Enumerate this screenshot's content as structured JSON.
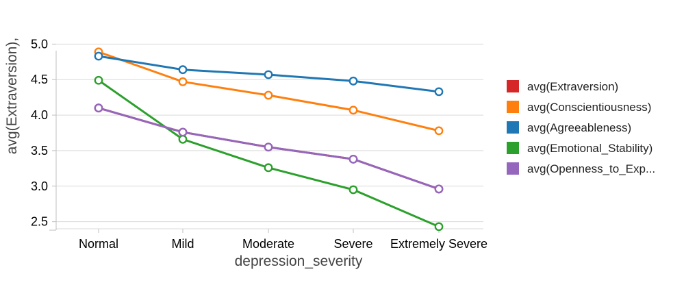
{
  "chart_data": {
    "type": "line",
    "xlabel": "depression_severity",
    "ylabel": "avg(Extraversion),",
    "categories": [
      "Normal",
      "Mild",
      "Moderate",
      "Severe",
      "Extremely Severe"
    ],
    "ylim": [
      2.4,
      5.1
    ],
    "yticks": [
      2.5,
      3.0,
      3.5,
      4.0,
      4.5,
      5.0
    ],
    "ytick_labels": [
      "2.5",
      "3.0",
      "3.5",
      "4.0",
      "4.5",
      "5.0"
    ],
    "grid": true,
    "legend_position": "right",
    "series": [
      {
        "name": "avg(Extraversion)",
        "color": "#d62728",
        "values": [
          4.1,
          3.76,
          3.55,
          3.38,
          2.96
        ]
      },
      {
        "name": "avg(Conscientiousness)",
        "color": "#ff7f0e",
        "values": [
          4.89,
          4.47,
          4.28,
          4.07,
          3.78
        ]
      },
      {
        "name": "avg(Agreeableness)",
        "color": "#1f77b4",
        "values": [
          4.83,
          4.64,
          4.57,
          4.48,
          4.33
        ]
      },
      {
        "name": "avg(Emotional_Stability)",
        "color": "#2ca02c",
        "values": [
          4.49,
          3.66,
          3.26,
          2.95,
          2.43
        ]
      },
      {
        "name": "avg(Openness_to_Exp...",
        "color": "#9467bd",
        "values": [
          4.1,
          3.76,
          3.55,
          3.38,
          2.96
        ]
      }
    ]
  }
}
